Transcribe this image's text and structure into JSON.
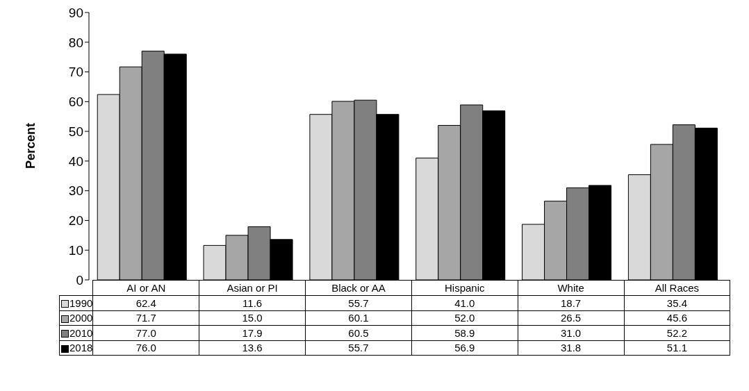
{
  "chart_data": {
    "type": "bar",
    "ylabel": "Percent",
    "categories": [
      "AI or AN",
      "Asian or PI",
      "Black or AA",
      "Hispanic",
      "White",
      "All Races"
    ],
    "series": [
      {
        "name": "1990",
        "color": "#d9d9d9",
        "values": [
          62.4,
          11.6,
          55.7,
          41.0,
          18.7,
          35.4
        ],
        "value_labels": [
          "62.4",
          "11.6",
          "55.7",
          "41.0",
          "18.7",
          "35.4"
        ]
      },
      {
        "name": "2000",
        "color": "#a6a6a6",
        "values": [
          71.7,
          15.0,
          60.1,
          52.0,
          26.5,
          45.6
        ],
        "value_labels": [
          "71.7",
          "15.0",
          "60.1",
          "52.0",
          "26.5",
          "45.6"
        ]
      },
      {
        "name": "2010",
        "color": "#808080",
        "values": [
          77.0,
          17.9,
          60.5,
          58.9,
          31.0,
          52.2
        ],
        "value_labels": [
          "77.0",
          "17.9",
          "60.5",
          "58.9",
          "31.0",
          "52.2"
        ]
      },
      {
        "name": "2018",
        "color": "#000000",
        "values": [
          76.0,
          13.6,
          55.7,
          56.9,
          31.8,
          51.1
        ],
        "value_labels": [
          "76.0",
          "13.6",
          "55.7",
          "56.9",
          "31.8",
          "51.1"
        ]
      }
    ],
    "ylim": [
      0,
      90
    ],
    "yticks": [
      0,
      10,
      20,
      30,
      40,
      50,
      60,
      70,
      80,
      90
    ],
    "grid": false,
    "legend": "bottom left"
  }
}
